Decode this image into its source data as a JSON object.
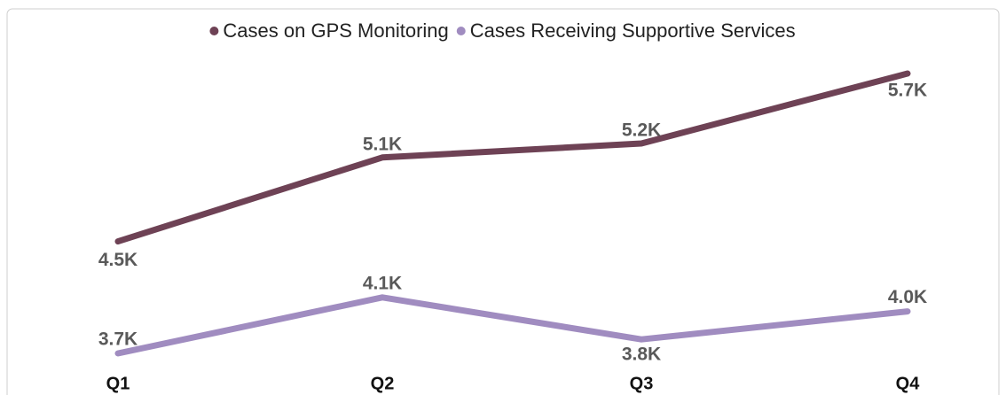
{
  "chart_data": {
    "type": "line",
    "categories": [
      "Q1",
      "Q2",
      "Q3",
      "Q4"
    ],
    "series": [
      {
        "name": "Cases on GPS Monitoring",
        "color": "#6e4255",
        "values": [
          4500,
          5100,
          5200,
          5700
        ],
        "value_labels": [
          "4.5K",
          "5.1K",
          "5.2K",
          "5.7K"
        ]
      },
      {
        "name": "Cases Receiving Supportive Services",
        "color": "#a08cc0",
        "values": [
          3700,
          4100,
          3800,
          4000
        ],
        "value_labels": [
          "3.7K",
          "4.1K",
          "3.8K",
          "4.0K"
        ]
      }
    ],
    "legend": "top"
  }
}
